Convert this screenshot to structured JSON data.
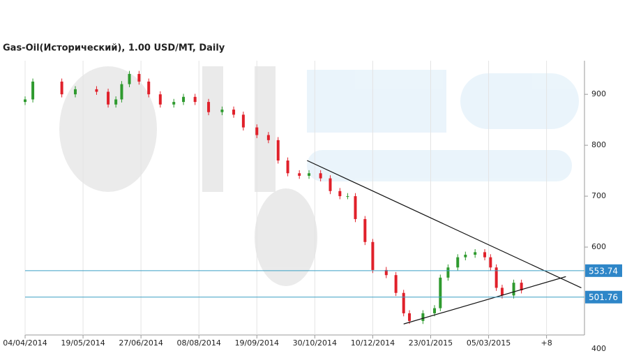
{
  "chart_data": {
    "type": "candlestick",
    "title": "Gas-Oil(Исторический), 1.00 USD/MT, Daily",
    "x": [
      0,
      4,
      19,
      26,
      37,
      43,
      47,
      50,
      54,
      59,
      64,
      70,
      77,
      82,
      88,
      95,
      102,
      108,
      113,
      120,
      126,
      131,
      136,
      142,
      147,
      153,
      158,
      163,
      167,
      171,
      176,
      180,
      187,
      192,
      196,
      199,
      206,
      212,
      215,
      219,
      224,
      228,
      233,
      238,
      241,
      244,
      247,
      253,
      257
    ],
    "open": [
      885,
      890,
      925,
      900,
      910,
      905,
      880,
      890,
      920,
      940,
      925,
      900,
      880,
      885,
      895,
      885,
      865,
      870,
      860,
      835,
      820,
      810,
      770,
      745,
      740,
      745,
      735,
      710,
      700,
      700,
      655,
      610,
      555,
      545,
      510,
      470,
      455,
      470,
      480,
      540,
      560,
      580,
      585,
      590,
      580,
      560,
      520,
      505,
      530
    ],
    "high": [
      896,
      931,
      931,
      916,
      916,
      911,
      896,
      926,
      946,
      946,
      931,
      906,
      891,
      901,
      901,
      891,
      876,
      876,
      866,
      841,
      826,
      816,
      776,
      751,
      751,
      751,
      741,
      716,
      706,
      706,
      661,
      616,
      561,
      551,
      516,
      476,
      476,
      486,
      546,
      566,
      586,
      591,
      596,
      596,
      586,
      566,
      526,
      536,
      536
    ],
    "low": [
      879,
      884,
      894,
      894,
      899,
      874,
      874,
      884,
      914,
      919,
      894,
      874,
      874,
      879,
      879,
      859,
      859,
      854,
      829,
      814,
      804,
      764,
      739,
      734,
      734,
      729,
      704,
      694,
      694,
      649,
      604,
      549,
      539,
      504,
      464,
      449,
      449,
      464,
      474,
      534,
      554,
      574,
      579,
      574,
      554,
      514,
      499,
      499,
      509
    ],
    "close": [
      890,
      925,
      900,
      910,
      905,
      880,
      890,
      920,
      940,
      925,
      900,
      880,
      885,
      895,
      885,
      865,
      870,
      860,
      835,
      820,
      810,
      770,
      745,
      740,
      745,
      735,
      710,
      700,
      700,
      655,
      610,
      555,
      545,
      510,
      470,
      455,
      470,
      480,
      540,
      560,
      580,
      585,
      590,
      580,
      560,
      520,
      505,
      530,
      515
    ],
    "up_color": "#2e9a2e",
    "down_color": "#e0202a",
    "xlim": [
      0,
      290
    ],
    "xticks": [
      {
        "value": 0,
        "label": "04/04/2014"
      },
      {
        "value": 30,
        "label": "19/05/2014"
      },
      {
        "value": 60,
        "label": "27/06/2014"
      },
      {
        "value": 90,
        "label": "08/08/2014"
      },
      {
        "value": 120,
        "label": "19/09/2014"
      },
      {
        "value": 150,
        "label": "30/10/2014"
      },
      {
        "value": 180,
        "label": "10/12/2014"
      },
      {
        "value": 210,
        "label": "23/01/2015"
      },
      {
        "value": 240,
        "label": "05/03/2015"
      },
      {
        "value": 270,
        "label": "+8"
      }
    ],
    "ylim": [
      400,
      966
    ],
    "yticks": [
      400,
      600,
      700,
      800,
      900
    ],
    "levels": [
      {
        "value": 553.74,
        "color": "#3a9fc4"
      },
      {
        "value": 501.76,
        "color": "#3a9fc4"
      }
    ],
    "trendlines": [
      {
        "x": [
          146,
          288
        ],
        "y": [
          770,
          520
        ]
      },
      {
        "x": [
          196,
          280
        ],
        "y": [
          449,
          542
        ]
      }
    ],
    "grid": true
  }
}
